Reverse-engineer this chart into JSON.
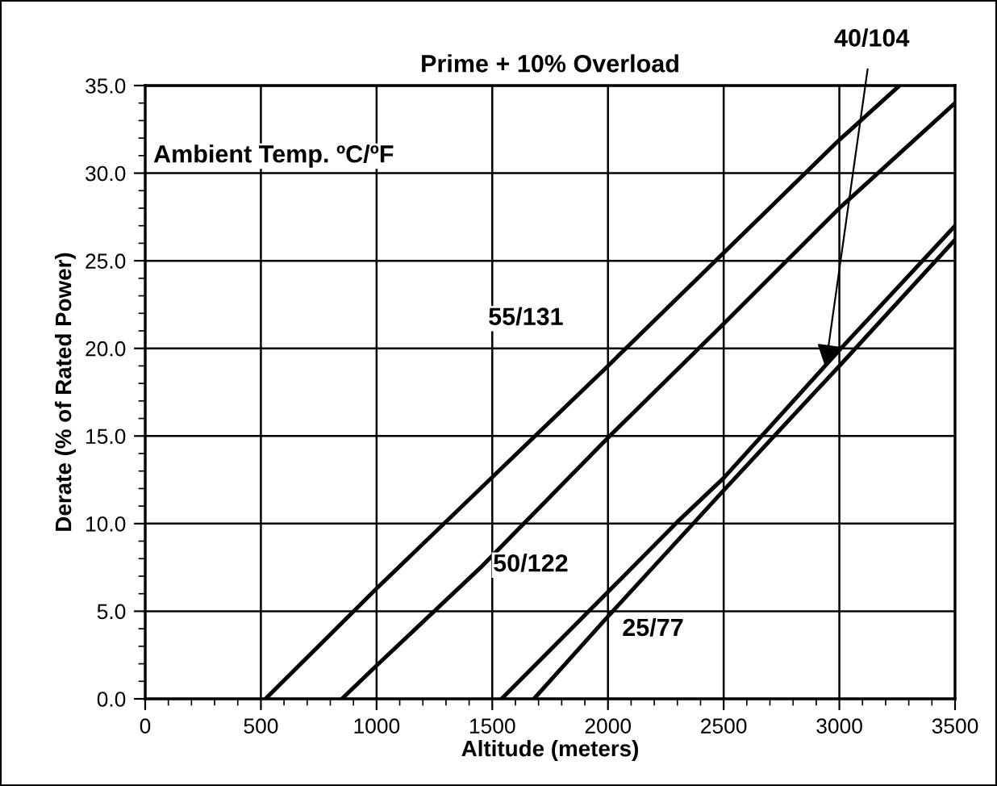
{
  "chart_data": {
    "type": "line",
    "title": "Prime + 10% Overload",
    "xlabel": "Altitude (meters)",
    "ylabel": "Derate (% of Rated Power)",
    "xlim": [
      0,
      3500
    ],
    "ylim": [
      0,
      35
    ],
    "xticks": [
      0,
      500,
      1000,
      1500,
      2000,
      2500,
      3000,
      3500
    ],
    "yticks": [
      {
        "value": 0,
        "label": "0.0"
      },
      {
        "value": 5,
        "label": "5.0"
      },
      {
        "value": 10,
        "label": "10.0"
      },
      {
        "value": 15,
        "label": "15.0"
      },
      {
        "value": 20,
        "label": "20.0"
      },
      {
        "value": 25,
        "label": "25.0"
      },
      {
        "value": 30,
        "label": "30.0"
      },
      {
        "value": 35,
        "label": "35.0"
      }
    ],
    "grid": true,
    "marker": "none",
    "line_style": "solid",
    "series": [
      {
        "color": "#000000",
        "x": [
          520,
          1000,
          2000,
          3000,
          3260
        ],
        "values": [
          0,
          6.3,
          19,
          31.9,
          35
        ]
      },
      {
        "color": "#000000",
        "x": [
          850,
          1000,
          1450,
          2000,
          2500,
          3000,
          3500
        ],
        "values": [
          0,
          1.9,
          7.5,
          14.9,
          21.4,
          28,
          34
        ]
      },
      {
        "color": "#000000",
        "x": [
          1540,
          2000,
          2300,
          2500,
          3000,
          3500
        ],
        "values": [
          0,
          6.1,
          10.1,
          12.6,
          19.9,
          27
        ]
      },
      {
        "color": "#000000",
        "x": [
          1680,
          2000,
          2500,
          3000,
          3500
        ],
        "values": [
          0,
          4.7,
          11.9,
          19,
          26.2
        ]
      }
    ],
    "annotations": [
      "Ambient Temp. ºC/ºF",
      "55/131",
      "50/122",
      "25/77",
      {
        "text": "40/104",
        "x": 2940,
        "y": 18.9
      }
    ]
  }
}
